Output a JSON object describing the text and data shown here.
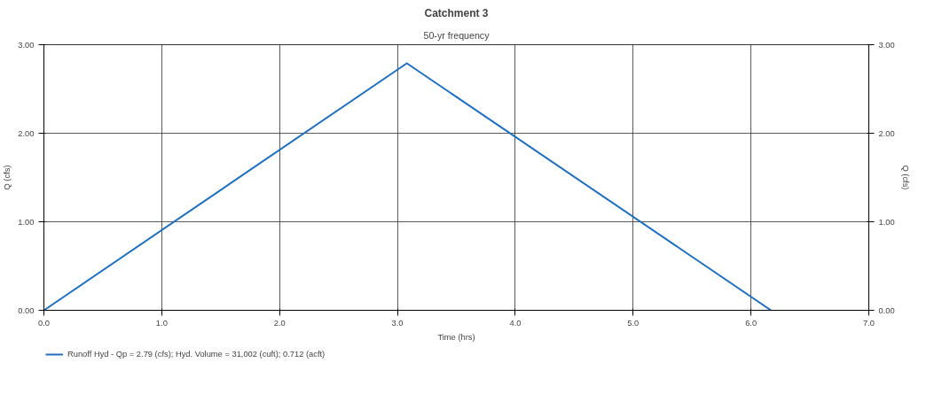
{
  "chart_data": {
    "type": "line",
    "title": "Catchment 3",
    "subtitle": "50-yr frequency",
    "xlabel": "Time (hrs)",
    "ylabel": "Q (cfs)",
    "y2label": "Q (cfs)",
    "x": [
      0.0,
      3.08,
      6.17
    ],
    "series": [
      {
        "name": "Runoff Hyd - Qp = 2.79 (cfs); Hyd. Volume = 31,002 (cuft); 0.712 (acft)",
        "color": "#1f6fbf",
        "values": [
          0.0,
          2.79,
          0.0
        ]
      }
    ],
    "xlim": [
      0,
      7
    ],
    "xticks": [
      {
        "value": 0,
        "label": "0.0"
      },
      {
        "value": 1,
        "label": "1.0"
      },
      {
        "value": 2,
        "label": "2.0"
      },
      {
        "value": 3,
        "label": "3.0"
      },
      {
        "value": 4,
        "label": "4.0"
      },
      {
        "value": 5,
        "label": "5.0"
      },
      {
        "value": 6,
        "label": "6.0"
      },
      {
        "value": 7,
        "label": "7.0"
      }
    ],
    "ylim": [
      0,
      3
    ],
    "yticks": [
      {
        "value": 0,
        "label": "0.00"
      },
      {
        "value": 1,
        "label": "1.00"
      },
      {
        "value": 2,
        "label": "2.00"
      },
      {
        "value": 3,
        "label": "3.00"
      }
    ],
    "y2lim": [
      0,
      3
    ],
    "y2ticks": [
      {
        "value": 0,
        "label": "0.00"
      },
      {
        "value": 1,
        "label": "1.00"
      },
      {
        "value": 2,
        "label": "2.00"
      },
      {
        "value": 3,
        "label": "3.00"
      }
    ],
    "grid": true,
    "legend": "bottom",
    "marker": "none",
    "line_style": "solid"
  }
}
